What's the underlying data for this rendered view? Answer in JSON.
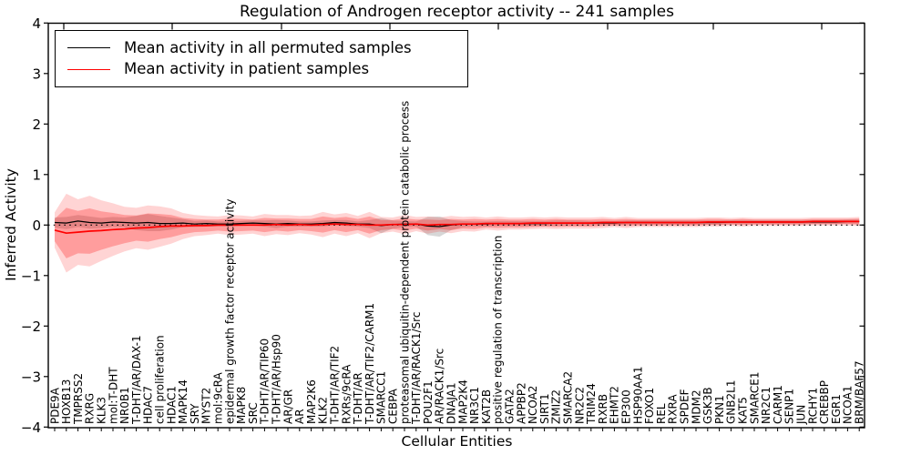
{
  "colors": {
    "permuted_line": "#000000",
    "patient_line": "#ff0000",
    "permuted_band": "rgba(110,110,110,0.28)",
    "patient_band_outer": "rgba(255,0,0,0.17)",
    "patient_band_inner": "rgba(255,0,0,0.26)",
    "axis": "#000000",
    "background": "#ffffff"
  },
  "chart_data": {
    "type": "line",
    "title": "Regulation of Androgen receptor activity -- 241 samples",
    "samples_count": 241,
    "xlabel": "Cellular Entities",
    "ylabel": "Inferred Activity",
    "ylim": [
      -4,
      4
    ],
    "xlim": [
      -0.55,
      69.5
    ],
    "grid": false,
    "zero_line": {
      "style": "dotted",
      "color": "#000000",
      "y": 0
    },
    "legend_position": "upper left",
    "ytick_values": [
      4,
      3,
      2,
      1,
      0,
      -1,
      -2,
      -3,
      -4
    ],
    "ytick_labels": [
      "4",
      "3",
      "2",
      "1",
      "0",
      "−1",
      "−2",
      "−3",
      "−4"
    ],
    "categories": [
      "PDE9A",
      "HOXB13",
      "TMPRSS2",
      "RXRG",
      "KLK3",
      "mol:T-DHT",
      "NR0B1",
      "T-DHT/AR/DAX-1",
      "HDAC7",
      "cell proliferation",
      "HDAC1",
      "MAPK14",
      "SRY",
      "MYST2",
      "mol:9cRA",
      "epidermal growth factor receptor activity",
      "MAPK8",
      "SRC",
      "T-DHT/AR/TIP60",
      "T-DHT/AR/Hsp90",
      "AR/GR",
      "AR",
      "MAP2K6",
      "KLK2",
      "T-DHT/AR/TIF2",
      "RXRs/9cRA",
      "T-DHT/AR",
      "T-DHT/AR/TIF2/CARM1",
      "SMARCC1",
      "CEBPA",
      "proteasomal ubiquitin-dependent protein catabolic process",
      "T-DHT/AR/RACK1/Src",
      "POU2F1",
      "AR/RACK1/Src",
      "DNAJA1",
      "MAP2K4",
      "NR3C1",
      "KAT2B",
      "positive regulation of transcription",
      "GATA2",
      "APPBP2",
      "NCOA2",
      "SIRT1",
      "ZMIZ2",
      "SMARCA2",
      "NR2C2",
      "TRIM24",
      "RXRB",
      "EHMT2",
      "EP300",
      "HSP90AA1",
      "FOXO1",
      "REL",
      "RXRA",
      "SPDEF",
      "MDM2",
      "GSK3B",
      "PKN1",
      "GNB2L1",
      "KAT5",
      "SMARCE1",
      "NR2C1",
      "CARM1",
      "SENP1",
      "JUN",
      "RCHY1",
      "CREBBP",
      "EGR1",
      "NCOA1",
      "BRM/BAF57"
    ],
    "series": [
      {
        "name": "Mean activity in all permuted samples",
        "color": "#000000",
        "values": [
          0.05,
          0.04,
          0.08,
          0.05,
          0.04,
          0.06,
          0.05,
          0.04,
          0.05,
          0.03,
          0.03,
          0.04,
          0.02,
          0.03,
          0.02,
          0.02,
          0.03,
          0.04,
          0.03,
          0.02,
          0.03,
          0.02,
          0.02,
          0.03,
          0.05,
          0.04,
          0.02,
          0.02,
          -0.01,
          0.01,
          0.02,
          0.02,
          -0.02,
          -0.03,
          0.0,
          0.02,
          0.02,
          0.02,
          0.03,
          0.03,
          0.03,
          0.03,
          0.03,
          0.04,
          0.04,
          0.04,
          0.04,
          0.04,
          0.04,
          0.05,
          0.05,
          0.05,
          0.05,
          0.05,
          0.05,
          0.05,
          0.05,
          0.05,
          0.06,
          0.06,
          0.06,
          0.06,
          0.06,
          0.06,
          0.06,
          0.06,
          0.06,
          0.06,
          0.07,
          0.07
        ]
      },
      {
        "name": "Mean activity in patient samples",
        "color": "#ff0000",
        "values": [
          -0.1,
          -0.16,
          -0.14,
          -0.12,
          -0.11,
          -0.09,
          -0.08,
          -0.06,
          -0.05,
          -0.03,
          -0.02,
          -0.02,
          -0.01,
          -0.01,
          0.0,
          0.0,
          0.0,
          0.0,
          0.0,
          0.01,
          0.0,
          0.01,
          0.0,
          0.01,
          0.02,
          0.01,
          0.01,
          0.0,
          0.0,
          0.01,
          0.01,
          0.02,
          0.0,
          0.01,
          0.01,
          0.02,
          0.02,
          0.03,
          0.03,
          0.03,
          0.03,
          0.04,
          0.04,
          0.04,
          0.04,
          0.04,
          0.04,
          0.05,
          0.05,
          0.05,
          0.05,
          0.05,
          0.05,
          0.05,
          0.05,
          0.05,
          0.06,
          0.06,
          0.06,
          0.06,
          0.06,
          0.06,
          0.06,
          0.06,
          0.06,
          0.07,
          0.07,
          0.07,
          0.07,
          0.07
        ]
      }
    ],
    "bands": [
      {
        "name": "permuted-samples-std-band",
        "center_series": 0,
        "color_key": "permuted_band",
        "half_widths": [
          0.1,
          0.12,
          0.12,
          0.12,
          0.1,
          0.1,
          0.1,
          0.14,
          0.17,
          0.15,
          0.12,
          0.08,
          0.06,
          0.06,
          0.05,
          0.05,
          0.05,
          0.05,
          0.06,
          0.08,
          0.06,
          0.05,
          0.05,
          0.06,
          0.05,
          0.06,
          0.05,
          0.08,
          0.15,
          0.08,
          0.06,
          0.05,
          0.18,
          0.2,
          0.1,
          0.06,
          0.05,
          0.05,
          0.05,
          0.05,
          0.05,
          0.05,
          0.05,
          0.05,
          0.05,
          0.05,
          0.04,
          0.04,
          0.04,
          0.04,
          0.04,
          0.04,
          0.04,
          0.04,
          0.04,
          0.04,
          0.04,
          0.04,
          0.04,
          0.04,
          0.04,
          0.04,
          0.04,
          0.04,
          0.04,
          0.04,
          0.04,
          0.04,
          0.04,
          0.04
        ]
      },
      {
        "name": "patient-samples-outer-band",
        "center_series": 1,
        "color_key": "patient_band_outer",
        "half_widths": [
          0.35,
          0.78,
          0.65,
          0.7,
          0.6,
          0.52,
          0.44,
          0.4,
          0.44,
          0.4,
          0.35,
          0.26,
          0.21,
          0.19,
          0.17,
          0.2,
          0.19,
          0.17,
          0.22,
          0.19,
          0.2,
          0.17,
          0.19,
          0.25,
          0.19,
          0.23,
          0.17,
          0.26,
          0.16,
          0.14,
          0.19,
          0.14,
          0.17,
          0.14,
          0.17,
          0.14,
          0.15,
          0.12,
          0.14,
          0.12,
          0.12,
          0.12,
          0.11,
          0.12,
          0.11,
          0.11,
          0.11,
          0.11,
          0.09,
          0.11,
          0.09,
          0.09,
          0.09,
          0.09,
          0.09,
          0.09,
          0.09,
          0.09,
          0.08,
          0.09,
          0.08,
          0.08,
          0.08,
          0.08,
          0.08,
          0.08,
          0.08,
          0.08,
          0.08,
          0.09
        ]
      },
      {
        "name": "patient-samples-std-band",
        "center_series": 1,
        "color_key": "patient_band_inner",
        "half_widths": [
          0.22,
          0.5,
          0.42,
          0.45,
          0.38,
          0.33,
          0.28,
          0.25,
          0.28,
          0.25,
          0.22,
          0.16,
          0.13,
          0.12,
          0.11,
          0.13,
          0.12,
          0.11,
          0.14,
          0.12,
          0.13,
          0.11,
          0.12,
          0.16,
          0.12,
          0.15,
          0.11,
          0.17,
          0.1,
          0.09,
          0.12,
          0.09,
          0.11,
          0.09,
          0.11,
          0.09,
          0.1,
          0.08,
          0.09,
          0.08,
          0.08,
          0.08,
          0.07,
          0.08,
          0.07,
          0.07,
          0.07,
          0.07,
          0.06,
          0.07,
          0.06,
          0.06,
          0.06,
          0.06,
          0.06,
          0.06,
          0.06,
          0.06,
          0.05,
          0.06,
          0.05,
          0.05,
          0.05,
          0.05,
          0.05,
          0.05,
          0.05,
          0.05,
          0.05,
          0.06
        ]
      }
    ]
  }
}
